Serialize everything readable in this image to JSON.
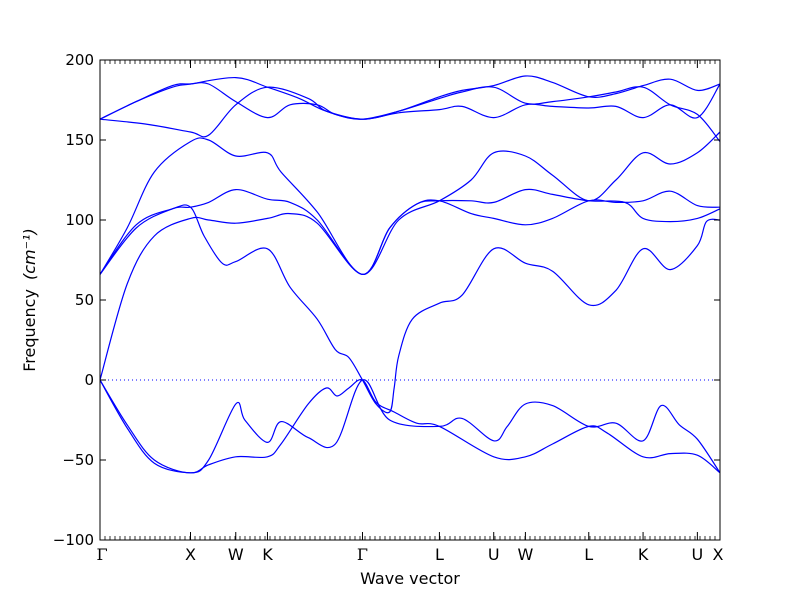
{
  "chart_data": {
    "type": "line",
    "xlabel": "Wave vector",
    "ylabel": "Frequency",
    "ylabel_unit": "(cm⁻¹)",
    "ylim": [
      -100,
      200
    ],
    "yticks": [
      "200",
      "150",
      "100",
      "50",
      "0",
      "−50",
      "−100"
    ],
    "zero_line": true,
    "grid": false,
    "line_color": "#0000ff",
    "kpoints": [
      {
        "label": "Γ",
        "x": 0.0
      },
      {
        "label": "X",
        "x": 1.0
      },
      {
        "label": "W",
        "x": 1.5
      },
      {
        "label": "K",
        "x": 1.85
      },
      {
        "label": "Γ",
        "x": 2.9
      },
      {
        "label": "L",
        "x": 3.75
      },
      {
        "label": "U",
        "x": 4.35
      },
      {
        "label": "W",
        "x": 4.7
      },
      {
        "label": "L",
        "x": 5.4
      },
      {
        "label": "K",
        "x": 6.0
      },
      {
        "label": "U",
        "x": 6.6
      },
      {
        "label": "X",
        "x": 6.85
      }
    ],
    "series": [
      {
        "values": [
          [
            0,
            0
          ],
          [
            0.3,
            -28
          ],
          [
            0.6,
            -50
          ],
          [
            1.0,
            -58
          ],
          [
            1.2,
            -50
          ],
          [
            1.5,
            -15
          ],
          [
            1.6,
            -25
          ],
          [
            1.85,
            -39
          ],
          [
            2.0,
            -26
          ],
          [
            2.3,
            -36
          ],
          [
            2.6,
            -40
          ],
          [
            2.9,
            0
          ],
          [
            3.2,
            -25
          ],
          [
            3.75,
            -29
          ],
          [
            4.0,
            -24
          ],
          [
            4.35,
            -38
          ],
          [
            4.5,
            -29
          ],
          [
            4.7,
            -15
          ],
          [
            5.0,
            -16
          ],
          [
            5.4,
            -29
          ],
          [
            5.7,
            -27
          ],
          [
            6.0,
            -38
          ],
          [
            6.2,
            -16
          ],
          [
            6.4,
            -28
          ],
          [
            6.6,
            -37
          ],
          [
            6.85,
            -58
          ]
        ]
      },
      {
        "values": [
          [
            0,
            0
          ],
          [
            0.3,
            -30
          ],
          [
            0.6,
            -52
          ],
          [
            1.0,
            -58
          ],
          [
            1.2,
            -53
          ],
          [
            1.5,
            -48
          ],
          [
            1.85,
            -48
          ],
          [
            2.0,
            -40
          ],
          [
            2.3,
            -15
          ],
          [
            2.5,
            -5
          ],
          [
            2.62,
            -10
          ],
          [
            2.75,
            -5
          ],
          [
            2.9,
            0
          ],
          [
            3.05,
            -14
          ],
          [
            3.25,
            -20
          ],
          [
            3.5,
            -27
          ],
          [
            3.75,
            -29
          ],
          [
            4.35,
            -48
          ],
          [
            4.7,
            -48
          ],
          [
            5.0,
            -40
          ],
          [
            5.4,
            -29
          ],
          [
            5.6,
            -33
          ],
          [
            6.0,
            -48
          ],
          [
            6.3,
            -46
          ],
          [
            6.6,
            -47
          ],
          [
            6.85,
            -58
          ]
        ]
      },
      {
        "values": [
          [
            0,
            0
          ],
          [
            0.3,
            60
          ],
          [
            0.6,
            90
          ],
          [
            1.0,
            101
          ],
          [
            1.2,
            100
          ],
          [
            1.5,
            98
          ],
          [
            1.85,
            101
          ],
          [
            2.1,
            104
          ],
          [
            2.4,
            98
          ],
          [
            2.9,
            66
          ],
          [
            3.2,
            95
          ],
          [
            3.5,
            110
          ],
          [
            3.75,
            112
          ],
          [
            4.1,
            112
          ],
          [
            4.35,
            111
          ],
          [
            4.7,
            119
          ],
          [
            5.0,
            116
          ],
          [
            5.4,
            112
          ],
          [
            5.8,
            111
          ],
          [
            6.0,
            101
          ],
          [
            6.3,
            99
          ],
          [
            6.6,
            101
          ],
          [
            6.85,
            107
          ]
        ]
      },
      {
        "values": [
          [
            0,
            66
          ],
          [
            0.4,
            95
          ],
          [
            0.8,
            107
          ],
          [
            1.0,
            108
          ],
          [
            1.2,
            111
          ],
          [
            1.5,
            119
          ],
          [
            1.85,
            113
          ],
          [
            2.1,
            111
          ],
          [
            2.4,
            100
          ],
          [
            2.9,
            66
          ],
          [
            3.2,
            95
          ],
          [
            3.5,
            110
          ],
          [
            3.75,
            112
          ],
          [
            4.1,
            104
          ],
          [
            4.35,
            101
          ],
          [
            4.7,
            97
          ],
          [
            5.0,
            101
          ],
          [
            5.4,
            112
          ],
          [
            5.7,
            111
          ],
          [
            6.0,
            112
          ],
          [
            6.3,
            118
          ],
          [
            6.6,
            109
          ],
          [
            6.85,
            108
          ]
        ]
      },
      {
        "values": [
          [
            0,
            66
          ],
          [
            0.4,
            97
          ],
          [
            0.8,
            107
          ],
          [
            1.0,
            108
          ],
          [
            1.15,
            90
          ],
          [
            1.35,
            73
          ],
          [
            1.5,
            74
          ],
          [
            1.85,
            82
          ],
          [
            2.1,
            58
          ],
          [
            2.4,
            38
          ],
          [
            2.6,
            19
          ],
          [
            2.75,
            14
          ],
          [
            2.9,
            0
          ],
          [
            3.05,
            -15
          ],
          [
            3.2,
            -20
          ],
          [
            3.25,
            -5
          ],
          [
            3.3,
            15
          ],
          [
            3.45,
            38
          ],
          [
            3.75,
            48
          ],
          [
            4.0,
            53
          ],
          [
            4.35,
            82
          ],
          [
            4.7,
            73
          ],
          [
            5.0,
            68
          ],
          [
            5.4,
            47
          ],
          [
            5.7,
            56
          ],
          [
            6.0,
            82
          ],
          [
            6.3,
            69
          ],
          [
            6.6,
            84
          ],
          [
            6.7,
            99
          ],
          [
            6.85,
            100
          ]
        ]
      },
      {
        "values": [
          [
            0,
            66
          ],
          [
            0.3,
            95
          ],
          [
            0.6,
            130
          ],
          [
            1.0,
            149
          ],
          [
            1.2,
            150
          ],
          [
            1.5,
            140
          ],
          [
            1.85,
            142
          ],
          [
            2.0,
            130
          ],
          [
            2.4,
            105
          ],
          [
            2.9,
            66
          ],
          [
            3.3,
            100
          ],
          [
            3.75,
            112
          ],
          [
            4.1,
            125
          ],
          [
            4.35,
            142
          ],
          [
            4.7,
            140
          ],
          [
            5.0,
            128
          ],
          [
            5.4,
            112
          ],
          [
            5.7,
            125
          ],
          [
            6.0,
            142
          ],
          [
            6.3,
            135
          ],
          [
            6.6,
            142
          ],
          [
            6.85,
            155
          ]
        ]
      },
      {
        "values": [
          [
            0,
            163
          ],
          [
            0.5,
            160
          ],
          [
            1.0,
            155
          ],
          [
            1.2,
            153
          ],
          [
            1.5,
            172
          ],
          [
            1.85,
            183
          ],
          [
            2.3,
            176
          ],
          [
            2.5,
            168
          ],
          [
            2.9,
            163
          ],
          [
            3.3,
            168
          ],
          [
            3.75,
            177
          ],
          [
            4.0,
            181
          ],
          [
            4.35,
            184
          ],
          [
            4.7,
            190
          ],
          [
            5.0,
            186
          ],
          [
            5.4,
            177
          ],
          [
            5.7,
            179
          ],
          [
            6.0,
            184
          ],
          [
            6.3,
            188
          ],
          [
            6.6,
            181
          ],
          [
            6.85,
            185
          ]
        ]
      },
      {
        "values": [
          [
            0,
            163
          ],
          [
            0.4,
            174
          ],
          [
            0.8,
            184
          ],
          [
            1.0,
            185
          ],
          [
            1.2,
            185
          ],
          [
            1.5,
            174
          ],
          [
            1.85,
            164
          ],
          [
            2.1,
            172
          ],
          [
            2.4,
            172
          ],
          [
            2.6,
            166
          ],
          [
            2.9,
            163
          ],
          [
            3.3,
            168
          ],
          [
            3.75,
            176
          ],
          [
            4.0,
            180
          ],
          [
            4.35,
            183
          ],
          [
            4.7,
            173
          ],
          [
            5.0,
            174
          ],
          [
            5.4,
            177
          ],
          [
            5.7,
            180
          ],
          [
            6.0,
            183
          ],
          [
            6.3,
            172
          ],
          [
            6.6,
            166
          ],
          [
            6.85,
            149
          ]
        ]
      },
      {
        "values": [
          [
            0,
            163
          ],
          [
            0.4,
            174
          ],
          [
            0.8,
            183
          ],
          [
            1.0,
            185
          ],
          [
            1.5,
            189
          ],
          [
            1.85,
            183
          ],
          [
            2.2,
            176
          ],
          [
            2.5,
            168
          ],
          [
            2.9,
            163
          ],
          [
            3.3,
            167
          ],
          [
            3.75,
            169
          ],
          [
            4.0,
            171
          ],
          [
            4.35,
            164
          ],
          [
            4.7,
            172
          ],
          [
            5.0,
            171
          ],
          [
            5.4,
            170
          ],
          [
            5.7,
            171
          ],
          [
            6.0,
            164
          ],
          [
            6.3,
            172
          ],
          [
            6.6,
            164
          ],
          [
            6.85,
            185
          ]
        ]
      }
    ]
  }
}
